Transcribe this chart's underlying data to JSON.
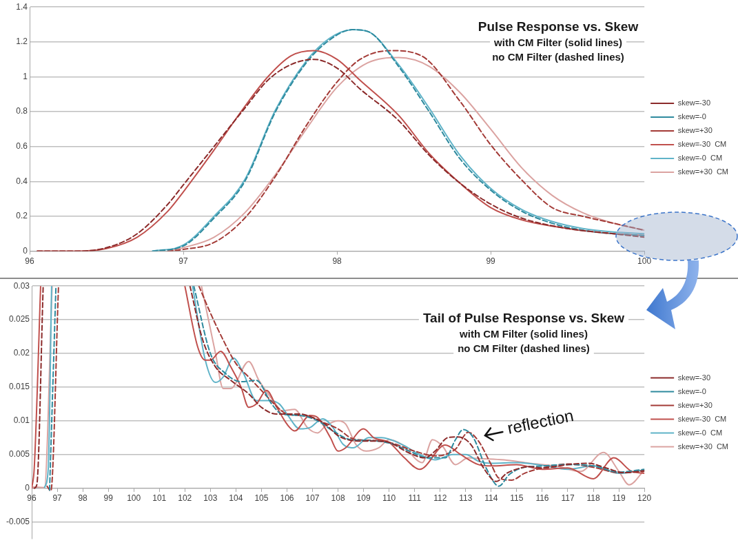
{
  "chart_data": [
    {
      "type": "line",
      "title": "Pulse Response vs. Skew",
      "subtitle": "with CM Filter (solid lines)",
      "annotations": [
        "no CM Filter (dashed lines)"
      ],
      "xlim": [
        96,
        100
      ],
      "xticks": [
        96,
        97,
        98,
        99,
        100
      ],
      "ylim": [
        0,
        1.4
      ],
      "yticks": [
        0,
        0.2,
        0.4,
        0.6,
        0.8,
        1,
        1.2,
        1.4
      ],
      "grid": "y",
      "legend": "right",
      "marker": "none",
      "series": [
        {
          "name": "skew=-30",
          "color": "#8b2a2a",
          "line_style": "dashed",
          "x": [
            96.05,
            96.3,
            96.5,
            96.7,
            96.9,
            97.0,
            97.2,
            97.4,
            97.55,
            97.7,
            97.85,
            98.0,
            98.15,
            98.4,
            98.6,
            98.8,
            99.0,
            99.2,
            99.5,
            99.8,
            100
          ],
          "values": [
            0,
            0,
            0.02,
            0.1,
            0.27,
            0.38,
            0.6,
            0.82,
            0.98,
            1.07,
            1.1,
            1.05,
            0.93,
            0.75,
            0.55,
            0.39,
            0.27,
            0.19,
            0.13,
            0.1,
            0.08
          ]
        },
        {
          "name": "skew=-0",
          "color": "#2e8a9e",
          "line_style": "dashed",
          "x": [
            96.8,
            97.0,
            97.2,
            97.4,
            97.6,
            97.8,
            97.95,
            98.1,
            98.2,
            98.4,
            98.6,
            98.8,
            99.0,
            99.2,
            99.4,
            99.6,
            99.8,
            100
          ],
          "values": [
            0,
            0.03,
            0.19,
            0.4,
            0.8,
            1.08,
            1.21,
            1.27,
            1.26,
            1.06,
            0.8,
            0.53,
            0.35,
            0.23,
            0.16,
            0.12,
            0.1,
            0.09
          ]
        },
        {
          "name": "skew=+30",
          "color": "#a33a36",
          "line_style": "dashed",
          "x": [
            96.9,
            97.0,
            97.2,
            97.4,
            97.6,
            97.8,
            98.0,
            98.15,
            98.35,
            98.55,
            98.8,
            99.0,
            99.2,
            99.4,
            99.6,
            99.8,
            100
          ],
          "values": [
            0,
            0.01,
            0.05,
            0.19,
            0.43,
            0.72,
            0.97,
            1.1,
            1.15,
            1.12,
            0.86,
            0.61,
            0.41,
            0.25,
            0.2,
            0.16,
            0.12
          ]
        },
        {
          "name": "skew=-30  CM",
          "color": "#c0504d",
          "line_style": "solid",
          "x": [
            96.05,
            96.3,
            96.5,
            96.7,
            96.9,
            97.0,
            97.2,
            97.4,
            97.55,
            97.7,
            97.85,
            98.0,
            98.15,
            98.4,
            98.6,
            98.8,
            99.0,
            99.2,
            99.5,
            99.8,
            100
          ],
          "values": [
            0,
            0,
            0.015,
            0.08,
            0.23,
            0.34,
            0.58,
            0.83,
            1.0,
            1.12,
            1.15,
            1.1,
            0.98,
            0.78,
            0.56,
            0.39,
            0.25,
            0.18,
            0.13,
            0.1,
            0.09
          ]
        },
        {
          "name": "skew=-0  CM",
          "color": "#5fb3c8",
          "line_style": "solid",
          "x": [
            96.8,
            97.0,
            97.2,
            97.4,
            97.6,
            97.8,
            97.95,
            98.1,
            98.2,
            98.4,
            98.6,
            98.8,
            99.0,
            99.2,
            99.4,
            99.6,
            99.8,
            100
          ],
          "values": [
            0,
            0.035,
            0.2,
            0.41,
            0.81,
            1.09,
            1.22,
            1.27,
            1.26,
            1.07,
            0.82,
            0.55,
            0.36,
            0.24,
            0.17,
            0.13,
            0.11,
            0.1
          ]
        },
        {
          "name": "skew=+30  CM",
          "color": "#dba3a1",
          "line_style": "solid",
          "x": [
            96.9,
            97.0,
            97.2,
            97.4,
            97.6,
            97.8,
            98.0,
            98.2,
            98.4,
            98.6,
            98.8,
            99.0,
            99.2,
            99.4,
            99.6,
            99.8,
            100
          ],
          "values": [
            0,
            0.02,
            0.08,
            0.22,
            0.44,
            0.7,
            0.94,
            1.08,
            1.11,
            1.06,
            0.91,
            0.7,
            0.48,
            0.32,
            0.22,
            0.16,
            0.12
          ]
        }
      ]
    },
    {
      "type": "line",
      "title": "Tail of Pulse Response vs. Skew",
      "subtitle": "with CM Filter (solid lines)",
      "annotations": [
        "no CM Filter (dashed lines)",
        "reflection"
      ],
      "xlim": [
        96,
        120
      ],
      "xticks": [
        96,
        97,
        98,
        99,
        100,
        101,
        102,
        103,
        104,
        105,
        106,
        107,
        108,
        109,
        110,
        111,
        112,
        113,
        114,
        115,
        116,
        117,
        118,
        119,
        120
      ],
      "ylim": [
        -0.0075,
        0.03
      ],
      "yticks": [
        -0.005,
        0,
        0.005,
        0.01,
        0.015,
        0.02,
        0.025,
        0.03
      ],
      "grid": "y",
      "legend": "right",
      "marker": "none",
      "series": [
        {
          "name": "skew=-30",
          "color": "#8b2a2a",
          "line_style": "dashed",
          "x": [
            96.1,
            96.2,
            96.45,
            99,
            102.2,
            102.7,
            103.2,
            103.8,
            104.5,
            105.0,
            105.6,
            106.5,
            107.0,
            107.5,
            108.0,
            108.5,
            109,
            109.5,
            110,
            110.8,
            111.4,
            111.8,
            112.3,
            112.7,
            113.2,
            113.7,
            114.2,
            114.6,
            114.9,
            115.5,
            116,
            117,
            117.8,
            118.5,
            119.2,
            120
          ],
          "values": [
            0,
            0.0005,
            0.03,
            null,
            0.03,
            0.022,
            0.018,
            0.016,
            0.014,
            0.012,
            0.011,
            0.011,
            0.0105,
            0.0095,
            0.0078,
            0.0071,
            0.007,
            0.007,
            0.0068,
            0.0052,
            0.0045,
            0.0055,
            0.0075,
            0.0076,
            0.0065,
            0.003,
            0.001,
            0.0022,
            0.0027,
            0.0032,
            0.003,
            0.0035,
            0.0037,
            0.003,
            0.0023,
            0.0026
          ]
        },
        {
          "name": "skew=-0",
          "color": "#2e8a9e",
          "line_style": "dashed",
          "x": [
            96.7,
            96.95,
            99,
            102.35,
            103.0,
            103.6,
            104.2,
            104.8,
            105.4,
            105.8,
            106.5,
            107.2,
            107.8,
            108.5,
            109,
            110,
            110.8,
            111.5,
            112.2,
            112.6,
            112.9,
            113.3,
            113.8,
            114.3,
            114.7,
            115.2,
            116,
            117,
            118,
            119,
            120
          ],
          "values": [
            -0.0003,
            0.03,
            null,
            0.03,
            0.02,
            0.017,
            0.0158,
            0.016,
            0.0125,
            0.011,
            0.0108,
            0.01,
            0.0085,
            0.0072,
            0.0071,
            0.0067,
            0.0055,
            0.0045,
            0.0045,
            0.0072,
            0.0087,
            0.0075,
            0.003,
            0.0003,
            0.002,
            0.003,
            0.0033,
            0.0035,
            0.0033,
            0.0024,
            0.0028
          ]
        },
        {
          "name": "skew=+30",
          "color": "#a33a36",
          "line_style": "dashed",
          "x": [
            96.6,
            96.75,
            97.05,
            99,
            102.55,
            103.0,
            103.5,
            104.0,
            104.5,
            105.0,
            105.5,
            106.0,
            106.8,
            107.4,
            108.0,
            108.6,
            109.3,
            110,
            111,
            111.8,
            112.6,
            113.1,
            113.5,
            114.0,
            114.3,
            114.8,
            115.3,
            116,
            117,
            118,
            119,
            120
          ],
          "values": [
            0.0003,
            -0.0004,
            0.03,
            null,
            0.03,
            0.026,
            0.022,
            0.0185,
            0.0165,
            0.0145,
            0.0125,
            0.011,
            0.0107,
            0.0098,
            0.0088,
            0.0073,
            0.0071,
            0.0068,
            0.0055,
            0.0048,
            0.0058,
            0.0083,
            0.007,
            0.0035,
            0.0015,
            0.0012,
            0.0022,
            0.003,
            0.0036,
            0.0031,
            0.0023,
            0.0025
          ]
        },
        {
          "name": "skew=-30  CM",
          "color": "#c0504d",
          "line_style": "solid",
          "x": [
            96.0,
            96.1,
            96.35,
            99,
            102.0,
            102.5,
            102.8,
            103.0,
            103.4,
            103.8,
            104.2,
            104.5,
            104.8,
            105.2,
            105.6,
            106.0,
            106.3,
            106.9,
            107.2,
            107.7,
            108.0,
            108.3,
            109.0,
            109.4,
            110,
            110.6,
            111.2,
            112.2,
            112.8,
            113.5,
            114,
            115,
            116,
            117,
            118,
            118.8,
            119.5,
            120
          ],
          "values": [
            0,
            0.003,
            0.03,
            null,
            0.03,
            0.021,
            0.019,
            0.019,
            0.0203,
            0.018,
            0.015,
            0.012,
            0.0125,
            0.0145,
            0.012,
            0.0095,
            0.0085,
            0.0108,
            0.0105,
            0.0075,
            0.0055,
            0.006,
            0.0088,
            0.0075,
            0.0068,
            0.0045,
            0.0028,
            0.0064,
            0.005,
            0.0035,
            0.0033,
            0.0035,
            0.0028,
            0.003,
            0.0014,
            0.0045,
            0.0025,
            0.0022
          ]
        },
        {
          "name": "skew=-0  CM",
          "color": "#5fb3c8",
          "line_style": "solid",
          "x": [
            96.5,
            96.65,
            96.78,
            99,
            102.3,
            102.8,
            103.2,
            103.5,
            103.9,
            104.3,
            104.8,
            105.3,
            105.7,
            106.0,
            106.5,
            106.9,
            107.4,
            107.8,
            108.2,
            108.6,
            109.2,
            109.7,
            110.5,
            111.2,
            111.8,
            112.5,
            113,
            113.5,
            114,
            115,
            116,
            117,
            118,
            119,
            120
          ],
          "values": [
            0.0001,
            0.003,
            0.03,
            null,
            0.03,
            0.019,
            0.0157,
            0.0165,
            0.0193,
            0.017,
            0.013,
            0.013,
            0.0125,
            0.011,
            0.0088,
            0.009,
            0.0103,
            0.009,
            0.0065,
            0.006,
            0.0075,
            0.0075,
            0.0065,
            0.005,
            0.0042,
            0.005,
            0.005,
            0.004,
            0.0037,
            0.0038,
            0.0034,
            0.0028,
            0.0033,
            0.0022,
            0.0027
          ]
        },
        {
          "name": "skew=+30  CM",
          "color": "#dba3a1",
          "line_style": "solid",
          "x": [
            96.0,
            96.5,
            96.8,
            99,
            102.65,
            103.2,
            103.5,
            103.8,
            104.5,
            104.9,
            105.5,
            105.8,
            106.3,
            106.8,
            107.2,
            107.5,
            108,
            108.3,
            108.7,
            109.1,
            109.6,
            110,
            110.5,
            111.3,
            111.7,
            112.1,
            112.6,
            113.1,
            113.5,
            114.5,
            115.5,
            116.5,
            117.5,
            118.4,
            119.0,
            119.4,
            120
          ],
          "values": [
            0.0002,
            0.0001,
            0.03,
            null,
            0.03,
            0.02,
            0.0148,
            0.0148,
            0.0188,
            0.016,
            0.0128,
            0.0115,
            0.0117,
            0.009,
            0.0082,
            0.0092,
            0.01,
            0.0095,
            0.0065,
            0.0055,
            0.006,
            0.0072,
            0.0065,
            0.0038,
            0.0072,
            0.0062,
            0.0035,
            0.0045,
            0.0044,
            0.0042,
            0.0037,
            0.0033,
            0.0025,
            0.0053,
            0.0025,
            0.0005,
            0.0027
          ]
        }
      ]
    }
  ]
}
